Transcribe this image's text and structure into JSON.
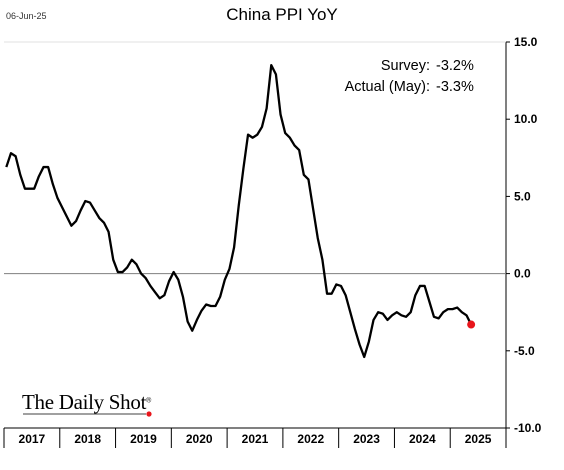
{
  "header": {
    "date": "06-Jun-25",
    "title": "China PPI YoY"
  },
  "annotations": [
    {
      "label": "Survey:",
      "value": "-3.2%"
    },
    {
      "label": "Actual (May):",
      "value": "-3.3%"
    }
  ],
  "brand": {
    "name": "The Daily Shot",
    "mark": "®"
  },
  "colors": {
    "line": "#000000",
    "highlight": "#e8151b",
    "zero_line": "#7f7f7f"
  },
  "chart_data": {
    "type": "line",
    "title": "China PPI YoY",
    "xlabel": "",
    "ylabel": "",
    "x_range": [
      "2017-01",
      "2025-05"
    ],
    "ylim": [
      -10,
      15
    ],
    "y_ticks": [
      15,
      10,
      5,
      0,
      -5,
      -10
    ],
    "y_tick_labels": [
      "15.0",
      "10.0",
      "5.0",
      "0.0",
      "-5.0",
      "-10.0"
    ],
    "year_labels": [
      "2017",
      "2018",
      "2019",
      "2020",
      "2021",
      "2022",
      "2023",
      "2024",
      "2025"
    ],
    "y_axis_side": "right",
    "grid": false,
    "series": [
      {
        "points": [
          [
            "2017-01",
            6.9
          ],
          [
            "2017-02",
            7.8
          ],
          [
            "2017-03",
            7.6
          ],
          [
            "2017-04",
            6.4
          ],
          [
            "2017-05",
            5.5
          ],
          [
            "2017-06",
            5.5
          ],
          [
            "2017-07",
            5.5
          ],
          [
            "2017-08",
            6.3
          ],
          [
            "2017-09",
            6.9
          ],
          [
            "2017-10",
            6.9
          ],
          [
            "2017-11",
            5.8
          ],
          [
            "2017-12",
            4.9
          ],
          [
            "2018-01",
            4.3
          ],
          [
            "2018-02",
            3.7
          ],
          [
            "2018-03",
            3.1
          ],
          [
            "2018-04",
            3.4
          ],
          [
            "2018-05",
            4.1
          ],
          [
            "2018-06",
            4.7
          ],
          [
            "2018-07",
            4.6
          ],
          [
            "2018-08",
            4.1
          ],
          [
            "2018-09",
            3.6
          ],
          [
            "2018-10",
            3.3
          ],
          [
            "2018-11",
            2.7
          ],
          [
            "2018-12",
            0.9
          ],
          [
            "2019-01",
            0.1
          ],
          [
            "2019-02",
            0.1
          ],
          [
            "2019-03",
            0.4
          ],
          [
            "2019-04",
            0.9
          ],
          [
            "2019-05",
            0.6
          ],
          [
            "2019-06",
            0.0
          ],
          [
            "2019-07",
            -0.3
          ],
          [
            "2019-08",
            -0.8
          ],
          [
            "2019-09",
            -1.2
          ],
          [
            "2019-10",
            -1.6
          ],
          [
            "2019-11",
            -1.4
          ],
          [
            "2019-12",
            -0.5
          ],
          [
            "2020-01",
            0.1
          ],
          [
            "2020-02",
            -0.4
          ],
          [
            "2020-03",
            -1.5
          ],
          [
            "2020-04",
            -3.1
          ],
          [
            "2020-05",
            -3.7
          ],
          [
            "2020-06",
            -3.0
          ],
          [
            "2020-07",
            -2.4
          ],
          [
            "2020-08",
            -2.0
          ],
          [
            "2020-09",
            -2.1
          ],
          [
            "2020-10",
            -2.1
          ],
          [
            "2020-11",
            -1.5
          ],
          [
            "2020-12",
            -0.4
          ],
          [
            "2021-01",
            0.3
          ],
          [
            "2021-02",
            1.7
          ],
          [
            "2021-03",
            4.4
          ],
          [
            "2021-04",
            6.8
          ],
          [
            "2021-05",
            9.0
          ],
          [
            "2021-06",
            8.8
          ],
          [
            "2021-07",
            9.0
          ],
          [
            "2021-08",
            9.5
          ],
          [
            "2021-09",
            10.7
          ],
          [
            "2021-10",
            13.5
          ],
          [
            "2021-11",
            12.9
          ],
          [
            "2021-12",
            10.3
          ],
          [
            "2022-01",
            9.1
          ],
          [
            "2022-02",
            8.8
          ],
          [
            "2022-03",
            8.3
          ],
          [
            "2022-04",
            8.0
          ],
          [
            "2022-05",
            6.4
          ],
          [
            "2022-06",
            6.1
          ],
          [
            "2022-07",
            4.2
          ],
          [
            "2022-08",
            2.3
          ],
          [
            "2022-09",
            0.9
          ],
          [
            "2022-10",
            -1.3
          ],
          [
            "2022-11",
            -1.3
          ],
          [
            "2022-12",
            -0.7
          ],
          [
            "2023-01",
            -0.8
          ],
          [
            "2023-02",
            -1.4
          ],
          [
            "2023-03",
            -2.5
          ],
          [
            "2023-04",
            -3.6
          ],
          [
            "2023-05",
            -4.6
          ],
          [
            "2023-06",
            -5.4
          ],
          [
            "2023-07",
            -4.4
          ],
          [
            "2023-08",
            -3.0
          ],
          [
            "2023-09",
            -2.5
          ],
          [
            "2023-10",
            -2.6
          ],
          [
            "2023-11",
            -3.0
          ],
          [
            "2023-12",
            -2.7
          ],
          [
            "2024-01",
            -2.5
          ],
          [
            "2024-02",
            -2.7
          ],
          [
            "2024-03",
            -2.8
          ],
          [
            "2024-04",
            -2.5
          ],
          [
            "2024-05",
            -1.4
          ],
          [
            "2024-06",
            -0.8
          ],
          [
            "2024-07",
            -0.8
          ],
          [
            "2024-08",
            -1.8
          ],
          [
            "2024-09",
            -2.8
          ],
          [
            "2024-10",
            -2.9
          ],
          [
            "2024-11",
            -2.5
          ],
          [
            "2024-12",
            -2.3
          ],
          [
            "2025-01",
            -2.3
          ],
          [
            "2025-02",
            -2.2
          ],
          [
            "2025-03",
            -2.5
          ],
          [
            "2025-04",
            -2.7
          ],
          [
            "2025-05",
            -3.3
          ]
        ]
      }
    ],
    "highlight_point": [
      "2025-05",
      -3.3
    ]
  }
}
